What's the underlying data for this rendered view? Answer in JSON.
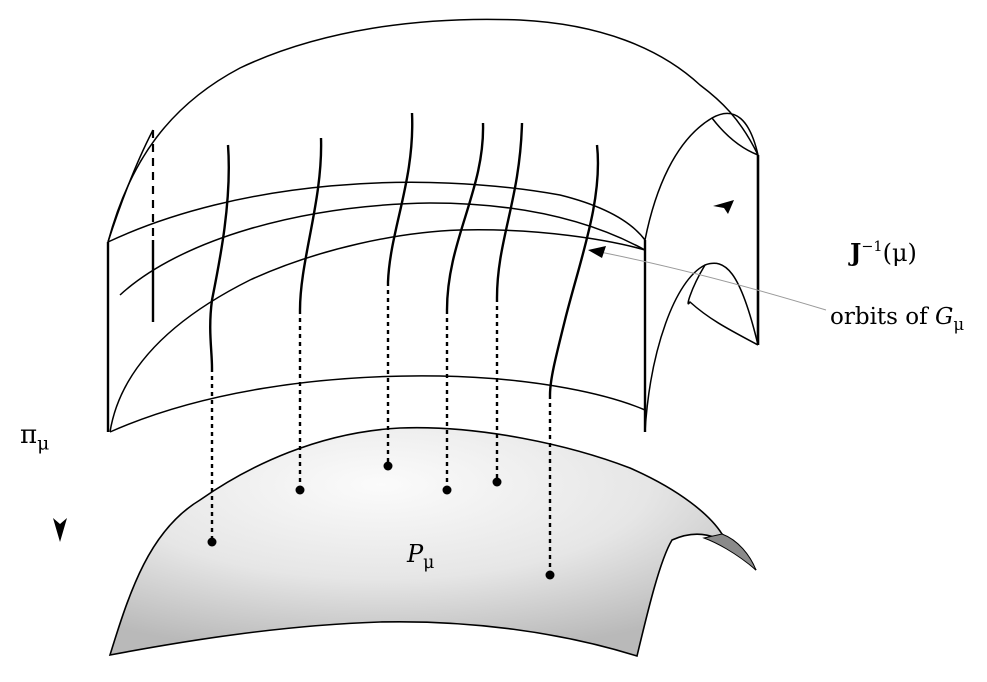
{
  "labels": {
    "level_set": {
      "main": "J",
      "sup": "−1",
      "arg": "(μ)"
    },
    "orbits": {
      "text": "orbits of ",
      "var": "G",
      "sub": "μ"
    },
    "projection": {
      "main": "π",
      "sub": "μ"
    },
    "quotient": {
      "main": "P",
      "sub": "μ"
    }
  },
  "colors": {
    "stroke": "#000000",
    "surface_light": "#fafafa",
    "surface_dark": "#bdbdbd",
    "pointer": "#9a9a9a"
  }
}
